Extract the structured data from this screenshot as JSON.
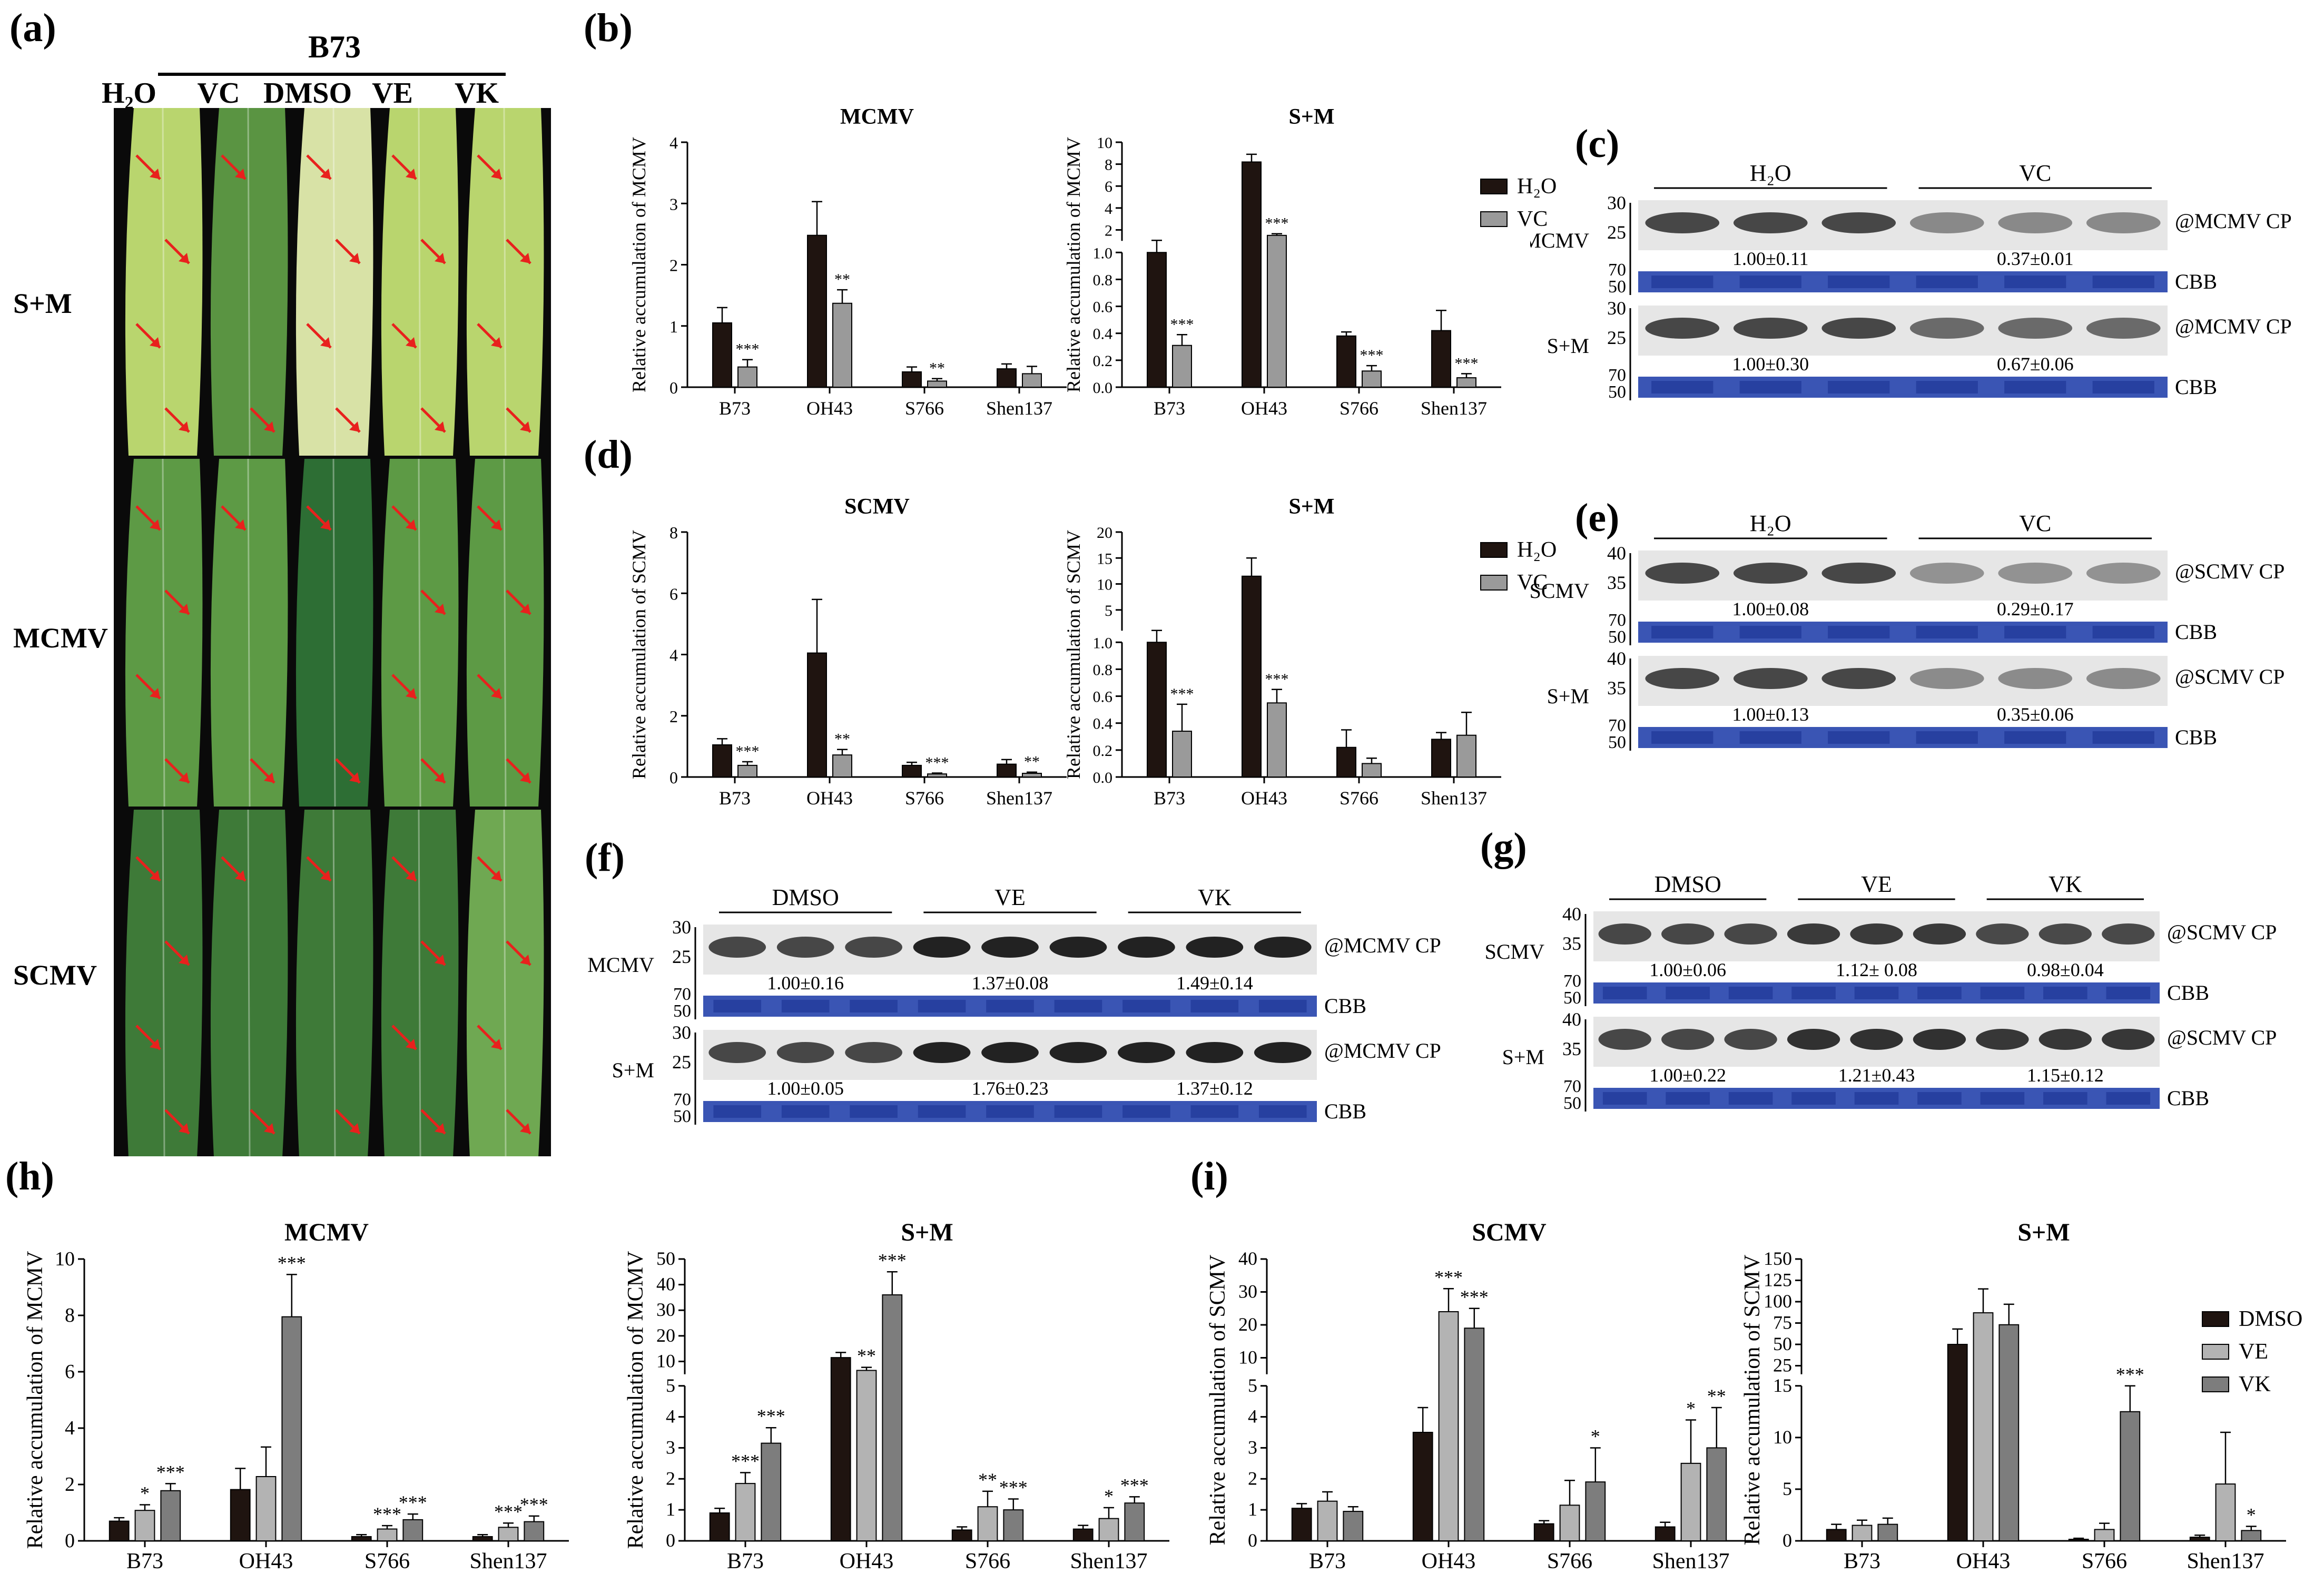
{
  "panels": {
    "a": "a",
    "b": "b",
    "c": "c",
    "d": "d",
    "e": "e",
    "f": "f",
    "g": "g",
    "h": "h",
    "i": "i"
  },
  "photo": {
    "title": "B73",
    "columns": [
      "H₂O",
      "VC",
      "DMSO",
      "VE",
      "VK"
    ],
    "rows": [
      "S+M",
      "MCMV",
      "SCMV"
    ],
    "colors": {
      "leaf_light": "#b7d36a",
      "leaf_dark": "#3f7a35",
      "arrow": "#e8211d",
      "background": "#0a0a0a"
    }
  },
  "legend_vc": {
    "items": [
      "H₂O",
      "VC"
    ],
    "colors": [
      "#1f1410",
      "#9a9a9a"
    ]
  },
  "legend_vk": {
    "items": [
      "DMSO",
      "VE",
      "VK"
    ],
    "colors": [
      "#1f1410",
      "#b3b3b3",
      "#7d7d7d"
    ]
  },
  "blots": {
    "c": {
      "groups": [
        "H₂O",
        "VC"
      ],
      "rows": [
        {
          "name": "MCMV",
          "markers_top": [
            "30",
            "25"
          ],
          "markers_cbb": [
            "70",
            "50"
          ],
          "target": "@MCMV CP",
          "values": [
            "1.00±0.11",
            "0.37±0.01"
          ],
          "cbb": "CBB"
        },
        {
          "name": "S+M",
          "markers_top": [
            "30",
            "25"
          ],
          "markers_cbb": [
            "70",
            "50"
          ],
          "target": "@MCMV CP",
          "values": [
            "1.00±0.30",
            "0.67±0.06"
          ],
          "cbb": "CBB"
        }
      ]
    },
    "e": {
      "groups": [
        "H₂O",
        "VC"
      ],
      "rows": [
        {
          "name": "SCMV",
          "markers_top": [
            "40",
            "35"
          ],
          "markers_cbb": [
            "70",
            "50"
          ],
          "target": "@SCMV CP",
          "values": [
            "1.00±0.08",
            "0.29±0.17"
          ],
          "cbb": "CBB"
        },
        {
          "name": "S+M",
          "markers_top": [
            "40",
            "35"
          ],
          "markers_cbb": [
            "70",
            "50"
          ],
          "target": "@SCMV CP",
          "values": [
            "1.00±0.13",
            "0.35±0.06"
          ],
          "cbb": "CBB"
        }
      ]
    },
    "f": {
      "groups": [
        "DMSO",
        "VE",
        "VK"
      ],
      "rows": [
        {
          "name": "MCMV",
          "markers_top": [
            "30",
            "25"
          ],
          "markers_cbb": [
            "70",
            "50"
          ],
          "target": "@MCMV CP",
          "values": [
            "1.00±0.16",
            "1.37±0.08",
            "1.49±0.14"
          ],
          "cbb": "CBB"
        },
        {
          "name": "S+M",
          "markers_top": [
            "30",
            "25"
          ],
          "markers_cbb": [
            "70",
            "50"
          ],
          "target": "@MCMV CP",
          "values": [
            "1.00±0.05",
            "1.76±0.23",
            "1.37±0.12"
          ],
          "cbb": "CBB"
        }
      ]
    },
    "g": {
      "groups": [
        "DMSO",
        "VE",
        "VK"
      ],
      "rows": [
        {
          "name": "SCMV",
          "markers_top": [
            "40",
            "35"
          ],
          "markers_cbb": [
            "70",
            "50"
          ],
          "target": "@SCMV CP",
          "values": [
            "1.00±0.06",
            "1.12± 0.08",
            "0.98±0.04"
          ],
          "cbb": "CBB"
        },
        {
          "name": "S+M",
          "markers_top": [
            "40",
            "35"
          ],
          "markers_cbb": [
            "70",
            "50"
          ],
          "target": "@SCMV CP",
          "values": [
            "1.00±0.22",
            "1.21±0.43",
            "1.15±0.12"
          ],
          "cbb": "CBB"
        }
      ]
    }
  },
  "chart_data": [
    {
      "id": "b1",
      "type": "bar",
      "title": "MCMV",
      "ylabel": "Relative accumulation of MCMV",
      "categories": [
        "B73",
        "OH43",
        "S766",
        "Shen137"
      ],
      "series": [
        {
          "name": "H₂O",
          "values": [
            1.05,
            2.48,
            0.25,
            0.3
          ],
          "err": [
            0.25,
            0.55,
            0.08,
            0.08
          ]
        },
        {
          "name": "VC",
          "values": [
            0.33,
            1.37,
            0.1,
            0.22
          ],
          "err": [
            0.12,
            0.22,
            0.04,
            0.12
          ]
        }
      ],
      "sig": [
        [
          "",
          "***"
        ],
        [
          "",
          "**"
        ],
        [
          "",
          "**"
        ],
        [
          "",
          ""
        ]
      ],
      "axis": {
        "type": "linear",
        "ylim": [
          0,
          4
        ],
        "ticks": [
          0,
          1,
          2,
          3,
          4
        ]
      }
    },
    {
      "id": "b2",
      "type": "bar",
      "title": "S+M",
      "ylabel": "Relative accumulation of MCMV",
      "categories": [
        "B73",
        "OH43",
        "S766",
        "Shen137"
      ],
      "series": [
        {
          "name": "H₂O",
          "values": [
            1.0,
            8.2,
            0.38,
            0.42
          ],
          "err": [
            0.05,
            0.7,
            0.03,
            0.15
          ]
        },
        {
          "name": "VC",
          "values": [
            0.31,
            1.5,
            0.12,
            0.07
          ],
          "err": [
            0.08,
            0.15,
            0.04,
            0.03
          ]
        }
      ],
      "sig": [
        [
          "",
          "***"
        ],
        [
          "",
          "***"
        ],
        [
          "",
          "***"
        ],
        [
          "",
          "***"
        ]
      ],
      "axis": {
        "type": "broken",
        "lower": [
          0,
          1.0
        ],
        "upper": [
          1.0,
          10
        ],
        "lower_ticks": [
          "0.0",
          "0.2",
          "0.4",
          "0.6",
          "0.8",
          "1.0"
        ],
        "upper_ticks": [
          "2",
          "4",
          "6",
          "8",
          "10"
        ]
      }
    },
    {
      "id": "d1",
      "type": "bar",
      "title": "SCMV",
      "ylabel": "Relative accumulation of SCMV",
      "categories": [
        "B73",
        "OH43",
        "S766",
        "Shen137"
      ],
      "series": [
        {
          "name": "H₂O",
          "values": [
            1.05,
            4.05,
            0.38,
            0.42
          ],
          "err": [
            0.2,
            1.75,
            0.1,
            0.15
          ]
        },
        {
          "name": "VC",
          "values": [
            0.38,
            0.72,
            0.1,
            0.12
          ],
          "err": [
            0.12,
            0.18,
            0.03,
            0.04
          ]
        }
      ],
      "sig": [
        [
          "",
          "***"
        ],
        [
          "",
          "**"
        ],
        [
          "",
          "***"
        ],
        [
          "",
          "**"
        ]
      ],
      "axis": {
        "type": "linear",
        "ylim": [
          0,
          8
        ],
        "ticks": [
          0,
          2,
          4,
          6,
          8
        ]
      }
    },
    {
      "id": "d2",
      "type": "bar",
      "title": "S+M",
      "ylabel": "Relative accumulation of SCMV",
      "categories": [
        "B73",
        "OH43",
        "S766",
        "Shen137"
      ],
      "series": [
        {
          "name": "H₂O",
          "values": [
            1.0,
            11.5,
            0.22,
            0.28
          ],
          "err": [
            0.05,
            3.5,
            0.13,
            0.05
          ]
        },
        {
          "name": "VC",
          "values": [
            0.34,
            0.55,
            0.1,
            0.31
          ],
          "err": [
            0.2,
            0.1,
            0.04,
            0.17
          ]
        }
      ],
      "sig": [
        [
          "",
          "***"
        ],
        [
          "",
          "***"
        ],
        [
          "",
          ""
        ],
        [
          "",
          ""
        ]
      ],
      "axis": {
        "type": "broken",
        "lower": [
          0,
          1.0
        ],
        "upper": [
          1.0,
          20
        ],
        "lower_ticks": [
          "0.0",
          "0.2",
          "0.4",
          "0.6",
          "0.8",
          "1.0"
        ],
        "upper_ticks": [
          "5",
          "10",
          "15",
          "20"
        ]
      }
    },
    {
      "id": "h1",
      "type": "bar",
      "title": "MCMV",
      "ylabel": "Relative accumulation of MCMV",
      "categories": [
        "B73",
        "OH43",
        "S766",
        "Shen137"
      ],
      "series": [
        {
          "name": "DMSO",
          "values": [
            0.7,
            1.82,
            0.15,
            0.15
          ],
          "err": [
            0.12,
            0.75,
            0.07,
            0.07
          ]
        },
        {
          "name": "VE",
          "values": [
            1.08,
            2.28,
            0.42,
            0.48
          ],
          "err": [
            0.2,
            1.05,
            0.12,
            0.15
          ]
        },
        {
          "name": "VK",
          "values": [
            1.78,
            7.95,
            0.75,
            0.68
          ],
          "err": [
            0.25,
            1.5,
            0.2,
            0.2
          ]
        }
      ],
      "sig": [
        [
          "",
          "*",
          "***"
        ],
        [
          "",
          "",
          "***"
        ],
        [
          "",
          "***",
          "***"
        ],
        [
          "",
          "***",
          "***"
        ]
      ],
      "axis": {
        "type": "linear",
        "ylim": [
          0,
          10
        ],
        "ticks": [
          0,
          2,
          4,
          6,
          8,
          10
        ]
      }
    },
    {
      "id": "h2",
      "type": "bar",
      "title": "S+M",
      "ylabel": "Relative accumulation of MCMV",
      "categories": [
        "B73",
        "OH43",
        "S766",
        "Shen137"
      ],
      "series": [
        {
          "name": "DMSO",
          "values": [
            0.9,
            11.5,
            0.35,
            0.38
          ],
          "err": [
            0.15,
            2.0,
            0.1,
            0.12
          ]
        },
        {
          "name": "VE",
          "values": [
            1.85,
            6.5,
            1.1,
            0.72
          ],
          "err": [
            0.35,
            1.2,
            0.5,
            0.35
          ]
        },
        {
          "name": "VK",
          "values": [
            3.15,
            36,
            1.0,
            1.22
          ],
          "err": [
            0.5,
            9,
            0.35,
            0.2
          ]
        }
      ],
      "sig": [
        [
          "",
          "***",
          "***"
        ],
        [
          "",
          "**",
          "***"
        ],
        [
          "",
          "**",
          "***"
        ],
        [
          "",
          "*",
          "***"
        ]
      ],
      "axis": {
        "type": "broken",
        "lower": [
          0,
          5
        ],
        "upper": [
          5,
          50
        ],
        "lower_ticks": [
          "0",
          "1",
          "2",
          "3",
          "4",
          "5"
        ],
        "upper_ticks": [
          "10",
          "20",
          "30",
          "40",
          "50"
        ]
      }
    },
    {
      "id": "i1",
      "type": "bar",
      "title": "SCMV",
      "ylabel": "Relative accumulation of SCMV",
      "categories": [
        "B73",
        "OH43",
        "S766",
        "Shen137"
      ],
      "series": [
        {
          "name": "DMSO",
          "values": [
            1.05,
            3.5,
            0.55,
            0.45
          ],
          "err": [
            0.15,
            0.8,
            0.1,
            0.15
          ]
        },
        {
          "name": "VE",
          "values": [
            1.28,
            24,
            1.15,
            2.5
          ],
          "err": [
            0.3,
            7,
            0.8,
            1.4
          ]
        },
        {
          "name": "VK",
          "values": [
            0.95,
            19,
            1.9,
            3.0
          ],
          "err": [
            0.15,
            6,
            1.1,
            1.3
          ]
        }
      ],
      "sig": [
        [
          "",
          "",
          ""
        ],
        [
          "",
          "***",
          "***"
        ],
        [
          "",
          "",
          "*"
        ],
        [
          "",
          "*",
          "**"
        ]
      ],
      "axis": {
        "type": "broken",
        "lower": [
          0,
          5
        ],
        "upper": [
          5,
          40
        ],
        "lower_ticks": [
          "0",
          "1",
          "2",
          "3",
          "4",
          "5"
        ],
        "upper_ticks": [
          "10",
          "20",
          "30",
          "40"
        ]
      }
    },
    {
      "id": "i2",
      "type": "bar",
      "title": "S+M",
      "ylabel": "Relative accumulation of SCMV",
      "categories": [
        "B73",
        "OH43",
        "S766",
        "Shen137"
      ],
      "series": [
        {
          "name": "DMSO",
          "values": [
            1.1,
            50,
            0.15,
            0.35
          ],
          "err": [
            0.5,
            18,
            0.1,
            0.2
          ]
        },
        {
          "name": "VE",
          "values": [
            1.5,
            87,
            1.1,
            5.5
          ],
          "err": [
            0.5,
            28,
            0.6,
            5.0
          ]
        },
        {
          "name": "VK",
          "values": [
            1.6,
            73,
            12.5,
            1.0
          ],
          "err": [
            0.6,
            24,
            2.5,
            0.4
          ]
        }
      ],
      "sig": [
        [
          "",
          "",
          ""
        ],
        [
          "",
          "",
          ""
        ],
        [
          "",
          "",
          "***"
        ],
        [
          "",
          "",
          "*"
        ]
      ],
      "axis": {
        "type": "broken",
        "lower": [
          0,
          15
        ],
        "upper": [
          15,
          150
        ],
        "lower_ticks": [
          "0",
          "5",
          "10",
          "15"
        ],
        "upper_ticks": [
          "25",
          "50",
          "75",
          "100",
          "125",
          "150"
        ]
      }
    }
  ]
}
